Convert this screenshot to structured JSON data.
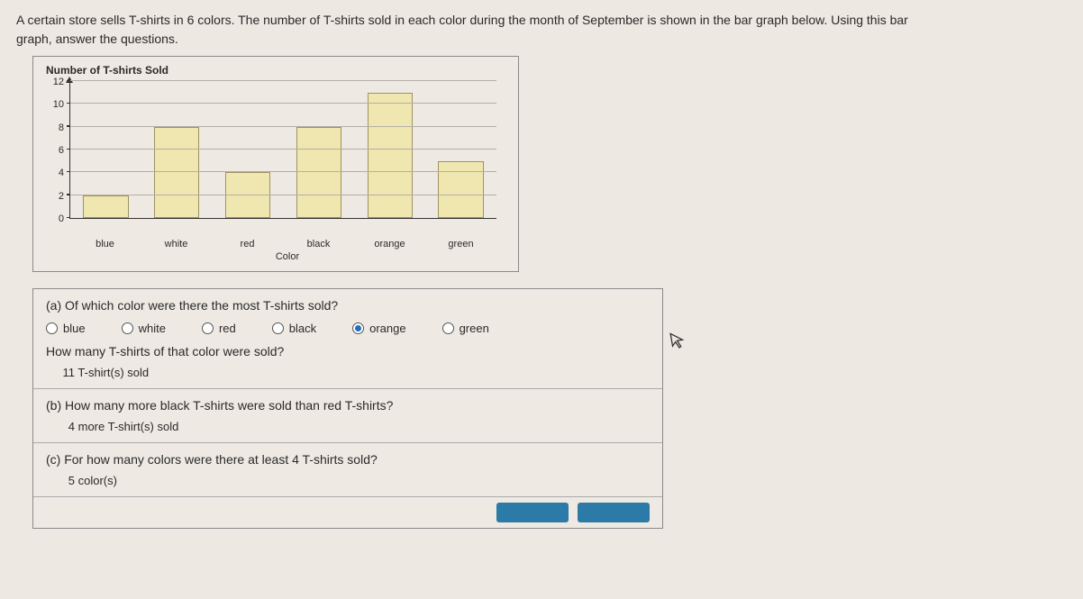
{
  "prompt_line1": "A certain store sells T-shirts in 6 colors. The number of T-shirts sold in each color during the month of September is shown in the bar graph below. Using this bar",
  "prompt_line2": "graph, answer the questions.",
  "chart": {
    "type": "bar",
    "title": "Number of T-shirts Sold",
    "x_axis_title": "Color",
    "categories": [
      "blue",
      "white",
      "red",
      "black",
      "orange",
      "green"
    ],
    "values": [
      2,
      8,
      4,
      8,
      11,
      5
    ],
    "ylim": [
      0,
      12
    ],
    "ytick_step": 2,
    "yticks": [
      0,
      2,
      4,
      6,
      8,
      10,
      12
    ],
    "bar_fill": "#f0e6b0",
    "bar_border": "#9c9463",
    "grid_color": "#b3afa7",
    "axis_color": "#333333",
    "background_color": "#eee9e2",
    "label_fontsize": 11,
    "title_fontsize": 12
  },
  "qa": {
    "a": {
      "question": "(a) Of which color were there the most T-shirts sold?",
      "options": [
        "blue",
        "white",
        "red",
        "black",
        "orange",
        "green"
      ],
      "selected": "orange",
      "followup": "How many T-shirts of that color were sold?",
      "answer_value": "11",
      "answer_unit": "T-shirt(s) sold"
    },
    "b": {
      "question": "(b) How many more black T-shirts were sold than red T-shirts?",
      "answer_value": "4",
      "answer_unit": "more T-shirt(s) sold"
    },
    "c": {
      "question": "(c) For how many colors were there at least 4 T-shirts sold?",
      "answer_value": "5",
      "answer_unit": "color(s)"
    }
  }
}
